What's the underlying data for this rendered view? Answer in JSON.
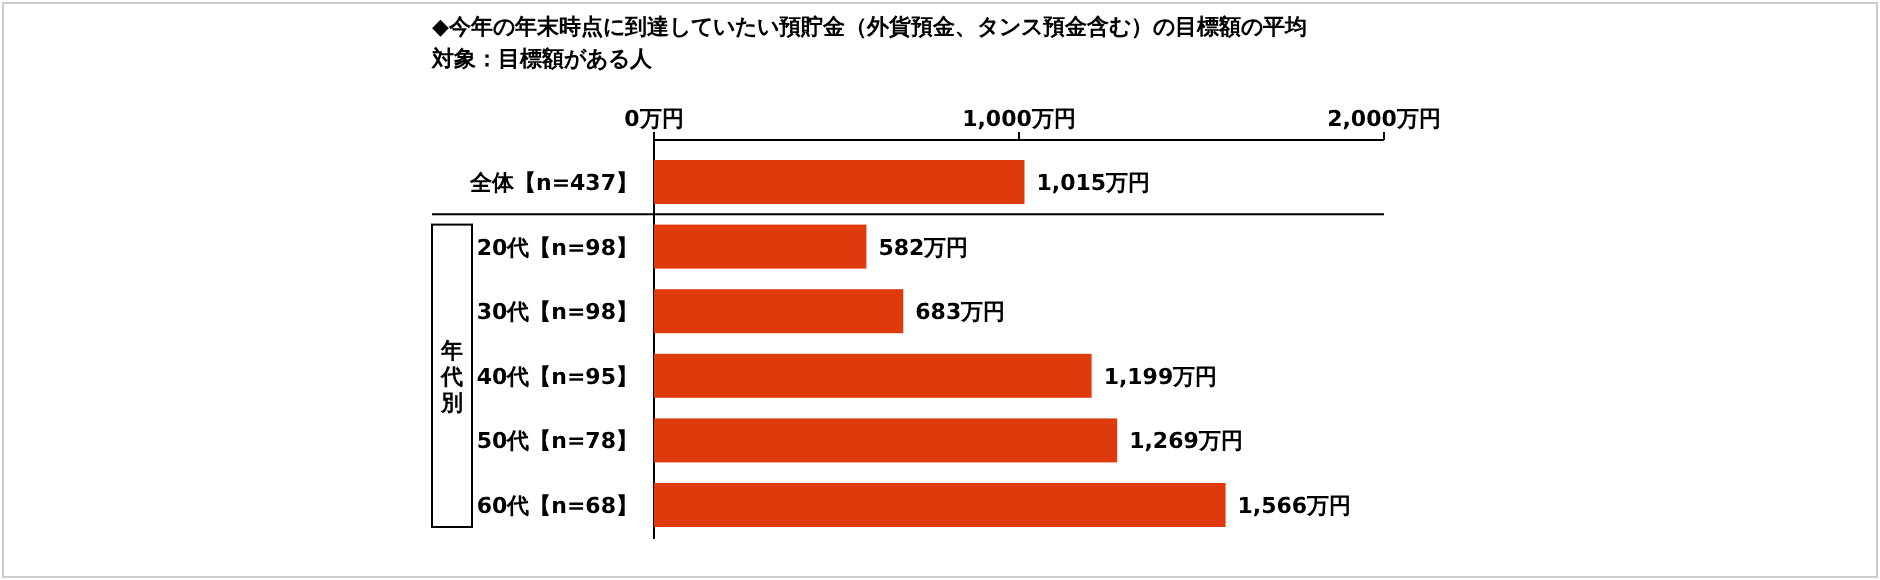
{
  "chart_data": {
    "type": "bar",
    "orientation": "horizontal",
    "title": "◆今年の年末時点に到達していたい預貯金（外貨預金、タンス預金含む）の目標額の平均",
    "subtitle": "対象：目標額がある人",
    "categories": [
      "全体【n=437】",
      "20代【n=98】",
      "30代【n=98】",
      "40代【n=95】",
      "50代【n=78】",
      "60代【n=68】"
    ],
    "values": [
      1015,
      582,
      683,
      1199,
      1269,
      1566
    ],
    "value_labels": [
      "1,015万円",
      "582万円",
      "683万円",
      "1,199万円",
      "1,269万円",
      "1,566万円"
    ],
    "color": "#de3a0c",
    "xlim": [
      0,
      2000
    ],
    "xticks": [
      {
        "value": 0,
        "label": "0万円"
      },
      {
        "value": 1000,
        "label": "1,000万円"
      },
      {
        "value": 2000,
        "label": "2,000万円"
      }
    ],
    "annotations": [
      "年代別"
    ]
  }
}
